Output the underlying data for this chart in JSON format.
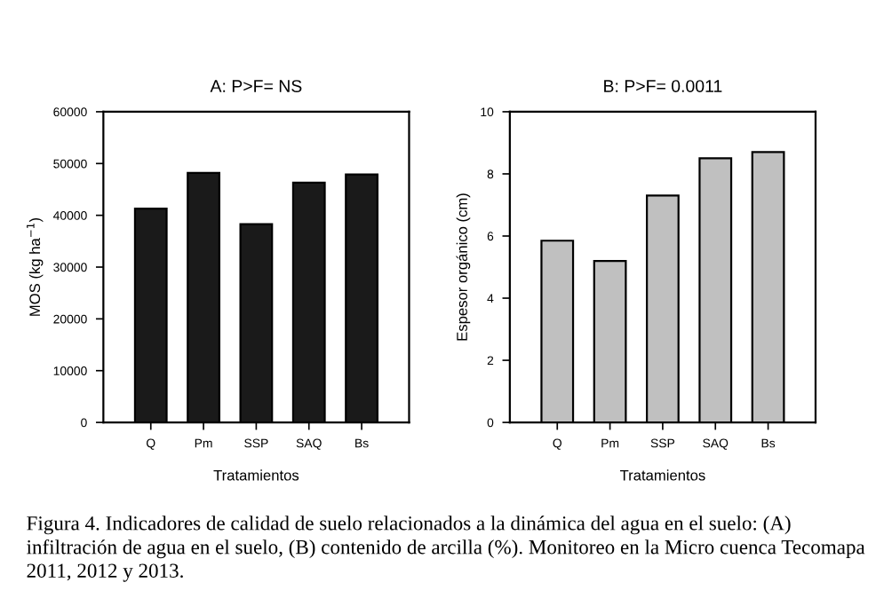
{
  "chart_data": [
    {
      "type": "bar",
      "title": "A: P>F= NS",
      "xlabel": "Tratamientos",
      "ylabel": "MOS (kg ha$^{−1}$)",
      "categories": [
        "Q",
        "Pm",
        "SSP",
        "SAQ",
        "Bs"
      ],
      "values": [
        41300,
        48200,
        38300,
        46300,
        47900
      ],
      "color": "#1a1a1a",
      "ylim": [
        0,
        60000
      ],
      "yticks": [
        0,
        10000,
        20000,
        30000,
        40000,
        50000,
        60000
      ],
      "grid": false,
      "legend": false
    },
    {
      "type": "bar",
      "title": "B: P>F= 0.0011",
      "xlabel": "Tratamientos",
      "ylabel": "Espesor orgánico (cm)",
      "categories": [
        "Q",
        "Pm",
        "SSP",
        "SAQ",
        "Bs"
      ],
      "values": [
        5.85,
        5.2,
        7.3,
        8.5,
        8.7
      ],
      "color": "#c0c0c0",
      "ylim": [
        0,
        10
      ],
      "yticks": [
        0,
        2,
        4,
        6,
        8,
        10
      ],
      "grid": false,
      "legend": false,
      "annotations": [
        "Figura 4. Indicadores de calidad de suelo relacionados a la dinámica del agua en el suelo: (A) infiltración de agua en el suelo, (B) contenido de arcilla (%). Monitoreo en la Micro cuenca Tecomapa 2011, 2012 y 2013."
      ]
    }
  ]
}
